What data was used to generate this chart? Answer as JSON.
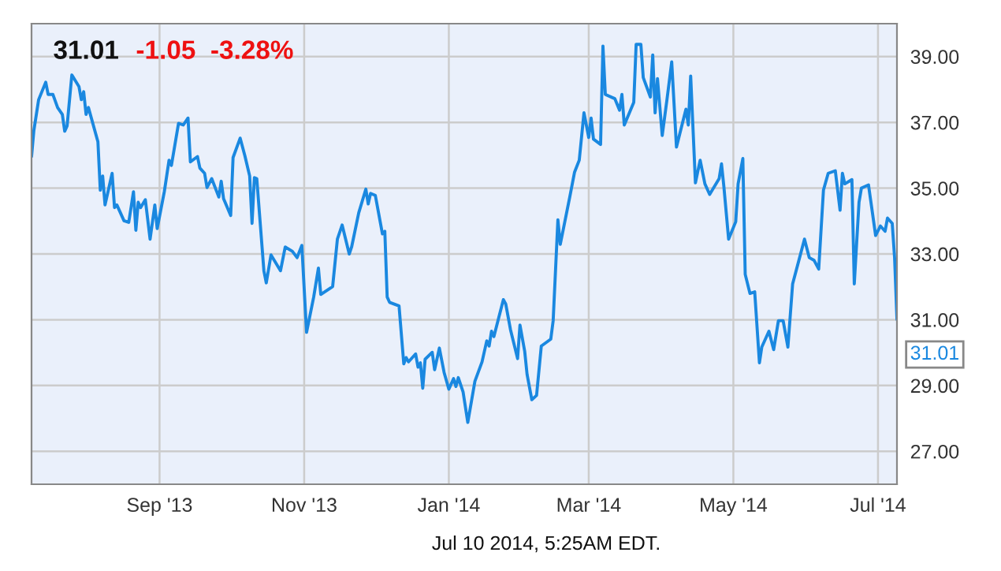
{
  "chart_data": {
    "type": "line",
    "title": "31.01",
    "subtitle": "-1.05  -3.28%",
    "annotations": [
      "Jul 10 2014, 5:25AM EDT.",
      {
        "text": "31.01",
        "x": "2014-07-09",
        "y": 31.01
      }
    ],
    "series": [
      {
        "color": "#1a88e0",
        "x": [
          "2013-07-09",
          "2013-07-10",
          "2013-07-12",
          "2013-07-15",
          "2013-07-16",
          "2013-07-18",
          "2013-07-20",
          "2013-07-22",
          "2013-07-23",
          "2013-07-24",
          "2013-07-26",
          "2013-07-29",
          "2013-07-30",
          "2013-07-31",
          "2013-08-01",
          "2013-08-02",
          "2013-08-06",
          "2013-08-07",
          "2013-08-08",
          "2013-08-09",
          "2013-08-12",
          "2013-08-13",
          "2013-08-14",
          "2013-08-17",
          "2013-08-19",
          "2013-08-21",
          "2013-08-22",
          "2013-08-23",
          "2013-08-24",
          "2013-08-26",
          "2013-08-28",
          "2013-08-30",
          "2013-08-31",
          "2013-09-03",
          "2013-09-05",
          "2013-09-06",
          "2013-09-09",
          "2013-09-11",
          "2013-09-13",
          "2013-09-14",
          "2013-09-17",
          "2013-09-18",
          "2013-09-20",
          "2013-09-21",
          "2013-09-23",
          "2013-09-26",
          "2013-09-27",
          "2013-09-28",
          "2013-10-01",
          "2013-10-02",
          "2013-10-05",
          "2013-10-07",
          "2013-10-09",
          "2013-10-10",
          "2013-10-11",
          "2013-10-12",
          "2013-10-15",
          "2013-10-16",
          "2013-10-18",
          "2013-10-20",
          "2013-10-22",
          "2013-10-24",
          "2013-10-27",
          "2013-10-29",
          "2013-10-31",
          "2013-11-02",
          "2013-11-05",
          "2013-11-07",
          "2013-11-08",
          "2013-11-13",
          "2013-11-15",
          "2013-11-17",
          "2013-11-20",
          "2013-11-21",
          "2013-11-24",
          "2013-11-27",
          "2013-11-28",
          "2013-11-29",
          "2013-12-01",
          "2013-12-04",
          "2013-12-05",
          "2013-12-06",
          "2013-12-07",
          "2013-12-11",
          "2013-12-13",
          "2013-12-14",
          "2013-12-15",
          "2013-12-18",
          "2013-12-19",
          "2013-12-20",
          "2013-12-21",
          "2013-12-22",
          "2013-12-25",
          "2013-12-26",
          "2013-12-28",
          "2013-12-30",
          "2014-01-01",
          "2014-01-03",
          "2014-01-04",
          "2014-01-05",
          "2014-01-07",
          "2014-01-09",
          "2014-01-12",
          "2014-01-15",
          "2014-01-17",
          "2014-01-18",
          "2014-01-19",
          "2014-01-20",
          "2014-01-24",
          "2014-01-25",
          "2014-01-27",
          "2014-01-30",
          "2014-01-31",
          "2014-02-02",
          "2014-02-03",
          "2014-02-05",
          "2014-02-07",
          "2014-02-09",
          "2014-02-13",
          "2014-02-14",
          "2014-02-16",
          "2014-02-17",
          "2014-02-21",
          "2014-02-23",
          "2014-02-25",
          "2014-02-27",
          "2014-03-01",
          "2014-03-02",
          "2014-03-03",
          "2014-03-06",
          "2014-03-07",
          "2014-03-08",
          "2014-03-12",
          "2014-03-14",
          "2014-03-15",
          "2014-03-16",
          "2014-03-20",
          "2014-03-21",
          "2014-03-23",
          "2014-03-24",
          "2014-03-27",
          "2014-03-28",
          "2014-03-29",
          "2014-03-30",
          "2014-04-01",
          "2014-04-03",
          "2014-04-05",
          "2014-04-07",
          "2014-04-11",
          "2014-04-12",
          "2014-04-13",
          "2014-04-15",
          "2014-04-17",
          "2014-04-19",
          "2014-04-21",
          "2014-04-25",
          "2014-04-26",
          "2014-04-27",
          "2014-04-29",
          "2014-05-02",
          "2014-05-03",
          "2014-05-05",
          "2014-05-06",
          "2014-05-08",
          "2014-05-10",
          "2014-05-12",
          "2014-05-13",
          "2014-05-16",
          "2014-05-18",
          "2014-05-20",
          "2014-05-22",
          "2014-05-24",
          "2014-05-26",
          "2014-05-31",
          "2014-06-02",
          "2014-06-04",
          "2014-06-06",
          "2014-06-08",
          "2014-06-10",
          "2014-06-13",
          "2014-06-15",
          "2014-06-16",
          "2014-06-17",
          "2014-06-20",
          "2014-06-21",
          "2014-06-23",
          "2014-06-24",
          "2014-06-27",
          "2014-06-30",
          "2014-07-02",
          "2014-07-04",
          "2014-07-05",
          "2014-07-07",
          "2014-07-08",
          "2014-07-09"
        ],
        "values": [
          35.96,
          36.76,
          37.69,
          38.22,
          37.85,
          37.85,
          37.45,
          37.24,
          36.73,
          36.89,
          38.44,
          38.09,
          37.69,
          37.93,
          37.24,
          37.45,
          36.41,
          34.94,
          35.37,
          34.49,
          35.45,
          34.41,
          34.49,
          34.01,
          33.96,
          34.89,
          33.72,
          34.57,
          34.41,
          34.65,
          33.45,
          34.49,
          33.77,
          34.89,
          35.85,
          35.69,
          36.97,
          36.92,
          37.13,
          35.8,
          35.96,
          35.61,
          35.45,
          35.02,
          35.29,
          34.73,
          35.21,
          34.68,
          34.17,
          35.93,
          36.52,
          35.98,
          35.37,
          33.93,
          35.32,
          35.29,
          32.49,
          32.12,
          32.97,
          32.73,
          32.49,
          33.21,
          33.08,
          32.89,
          33.26,
          30.62,
          31.69,
          32.57,
          31.77,
          32.01,
          33.45,
          33.88,
          33.0,
          33.21,
          34.25,
          34.97,
          34.52,
          34.84,
          34.78,
          33.61,
          33.69,
          31.69,
          31.53,
          31.42,
          29.66,
          29.85,
          29.72,
          29.96,
          29.56,
          29.69,
          28.92,
          29.8,
          30.01,
          29.48,
          30.14,
          29.4,
          28.89,
          29.21,
          28.97,
          29.24,
          28.81,
          27.88,
          29.13,
          29.72,
          30.36,
          30.2,
          30.65,
          30.49,
          31.61,
          31.48,
          30.7,
          29.82,
          30.84,
          30.04,
          29.34,
          28.57,
          28.7,
          30.2,
          30.41,
          30.97,
          34.04,
          33.29,
          34.73,
          35.48,
          35.85,
          37.29,
          36.54,
          37.13,
          36.49,
          36.33,
          39.32,
          37.85,
          37.72,
          37.37,
          37.85,
          36.92,
          37.61,
          39.37,
          39.37,
          38.36,
          37.77,
          39.05,
          37.29,
          38.33,
          36.6,
          37.69,
          38.84,
          36.25,
          37.4,
          36.92,
          38.41,
          35.16,
          35.85,
          35.13,
          34.81,
          35.29,
          35.74,
          35.05,
          33.45,
          33.98,
          35.13,
          35.9,
          32.38,
          31.8,
          31.85,
          29.69,
          30.17,
          30.65,
          30.09,
          30.97,
          30.97,
          30.17,
          32.09,
          33.45,
          32.89,
          32.81,
          32.54,
          34.94,
          35.45,
          35.53,
          34.33,
          35.45,
          35.13,
          35.26,
          32.09,
          34.57,
          35.0,
          35.1,
          33.56,
          33.85,
          33.69,
          34.09,
          33.93,
          32.89,
          31.01
        ]
      }
    ],
    "xlim": [
      "2013-07-09",
      "2014-07-09"
    ],
    "xticks": [
      {
        "value": "2013-09-01",
        "label": "Sep '13"
      },
      {
        "value": "2013-11-01",
        "label": "Nov '13"
      },
      {
        "value": "2014-01-01",
        "label": "Jan '14"
      },
      {
        "value": "2014-03-01",
        "label": "Mar '14"
      },
      {
        "value": "2014-05-01",
        "label": "May '14"
      },
      {
        "value": "2014-07-01",
        "label": "Jul '14"
      }
    ],
    "ylim": [
      26,
      40
    ],
    "yticks": [
      {
        "value": 27,
        "label": "27.00"
      },
      {
        "value": 29,
        "label": "29.00"
      },
      {
        "value": 31,
        "label": "31.00"
      },
      {
        "value": 33,
        "label": "33.00"
      },
      {
        "value": 35,
        "label": "35.00"
      },
      {
        "value": 37,
        "label": "37.00"
      },
      {
        "value": 39,
        "label": "39.00"
      }
    ],
    "grid": true,
    "legend": false,
    "marker": "none",
    "line_style": "solid"
  }
}
